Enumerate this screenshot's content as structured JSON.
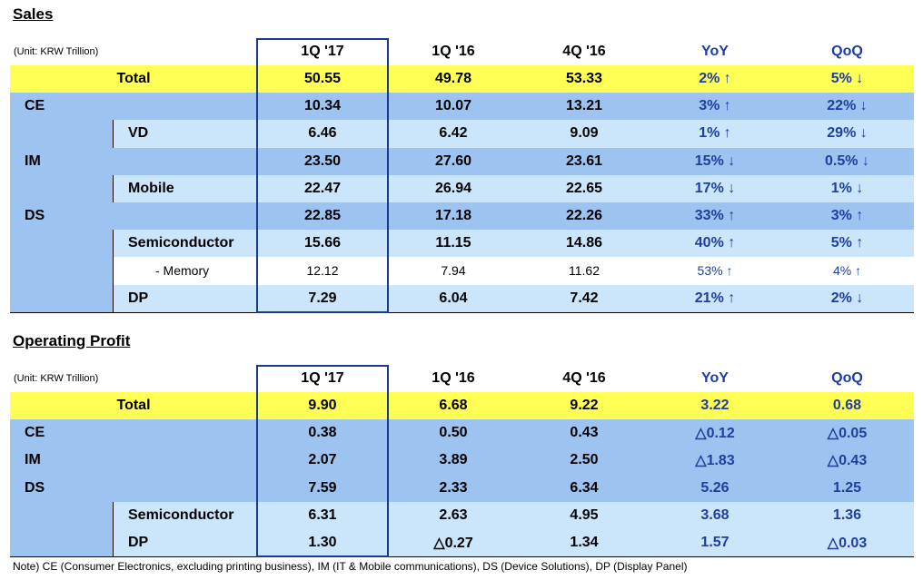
{
  "sales": {
    "title": "Sales",
    "unit": "(Unit: KRW Trillion)",
    "headers": [
      "1Q '17",
      "1Q '16",
      "4Q '16",
      "YoY",
      "QoQ"
    ],
    "rows": [
      {
        "label": "Total",
        "level": "total",
        "values": [
          "50.55",
          "49.78",
          "53.33",
          "2% ↑",
          "5% ↓"
        ]
      },
      {
        "label": "CE",
        "level": "segment",
        "values": [
          "10.34",
          "10.07",
          "13.21",
          "3% ↑",
          "22% ↓"
        ]
      },
      {
        "label": "VD",
        "level": "sub",
        "values": [
          "6.46",
          "6.42",
          "9.09",
          "1% ↑",
          "29% ↓"
        ]
      },
      {
        "label": "IM",
        "level": "segment",
        "values": [
          "23.50",
          "27.60",
          "23.61",
          "15% ↓",
          "0.5% ↓"
        ]
      },
      {
        "label": "Mobile",
        "level": "sub",
        "values": [
          "22.47",
          "26.94",
          "22.65",
          "17% ↓",
          "1% ↓"
        ]
      },
      {
        "label": "DS",
        "level": "segment",
        "values": [
          "22.85",
          "17.18",
          "22.26",
          "33% ↑",
          "3% ↑"
        ]
      },
      {
        "label": "Semiconductor",
        "level": "sub",
        "values": [
          "15.66",
          "11.15",
          "14.86",
          "40% ↑",
          "5% ↑"
        ]
      },
      {
        "label": "- Memory",
        "level": "subsub",
        "values": [
          "12.12",
          "7.94",
          "11.62",
          "53% ↑",
          "4% ↑"
        ]
      },
      {
        "label": "DP",
        "level": "sub",
        "values": [
          "7.29",
          "6.04",
          "7.42",
          "21% ↑",
          "2% ↓"
        ]
      }
    ]
  },
  "operating_profit": {
    "title": "Operating Profit",
    "unit": "(Unit: KRW Trillion)",
    "headers": [
      "1Q '17",
      "1Q '16",
      "4Q '16",
      "YoY",
      "QoQ"
    ],
    "rows": [
      {
        "label": "Total",
        "level": "total",
        "values": [
          "9.90",
          "6.68",
          "9.22",
          "3.22",
          "0.68"
        ]
      },
      {
        "label": "CE",
        "level": "segment",
        "values": [
          "0.38",
          "0.50",
          "0.43",
          "△0.12",
          "△0.05"
        ]
      },
      {
        "label": "IM",
        "level": "segment",
        "values": [
          "2.07",
          "3.89",
          "2.50",
          "△1.83",
          "△0.43"
        ]
      },
      {
        "label": "DS",
        "level": "segment",
        "values": [
          "7.59",
          "2.33",
          "6.34",
          "5.26",
          "1.25"
        ]
      },
      {
        "label": "Semiconductor",
        "level": "sub",
        "values": [
          "6.31",
          "2.63",
          "4.95",
          "3.68",
          "1.36"
        ]
      },
      {
        "label": "DP",
        "level": "sub",
        "values": [
          "1.30",
          "△0.27",
          "1.34",
          "1.57",
          "△0.03"
        ]
      }
    ]
  },
  "note": "Note) CE (Consumer Electronics, excluding printing business), IM (IT & Mobile communications),  DS (Device Solutions), DP (Display Panel)",
  "colors": {
    "total": "#ffff55",
    "segment": "#9dc3f0",
    "sub": "#cbe5fb",
    "accent": "#1f3fa0",
    "frame": "#1a3a8c"
  }
}
